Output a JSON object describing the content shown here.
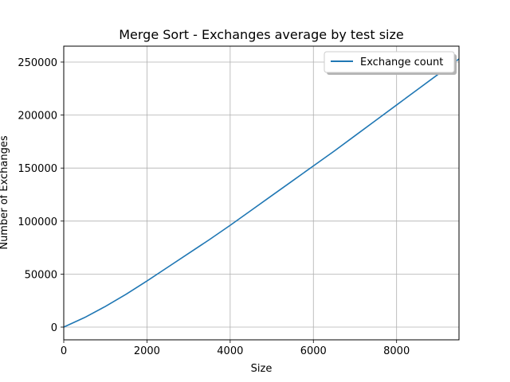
{
  "chart_data": {
    "type": "line",
    "title": "Merge Sort - Exchanges average by test size",
    "xlabel": "Size",
    "ylabel": "Number of Exchanges",
    "xlim": [
      0,
      9500
    ],
    "ylim": [
      -12000,
      265000
    ],
    "xticks": [
      0,
      2000,
      4000,
      6000,
      8000
    ],
    "yticks": [
      0,
      50000,
      100000,
      150000,
      200000,
      250000
    ],
    "grid": true,
    "legend_position": "upper right",
    "series": [
      {
        "name": "Exchange count",
        "color": "#1f77b4",
        "x": [
          0,
          500,
          1000,
          1500,
          2000,
          2500,
          3000,
          3500,
          4000,
          4500,
          5000,
          5500,
          6000,
          6500,
          7000,
          7500,
          8000,
          8500,
          9000,
          9500
        ],
        "y": [
          0,
          9000,
          19500,
          31000,
          43500,
          56500,
          69500,
          82500,
          96000,
          110000,
          124000,
          138000,
          152000,
          166000,
          180500,
          195000,
          209500,
          224000,
          238500,
          253000
        ]
      }
    ]
  }
}
